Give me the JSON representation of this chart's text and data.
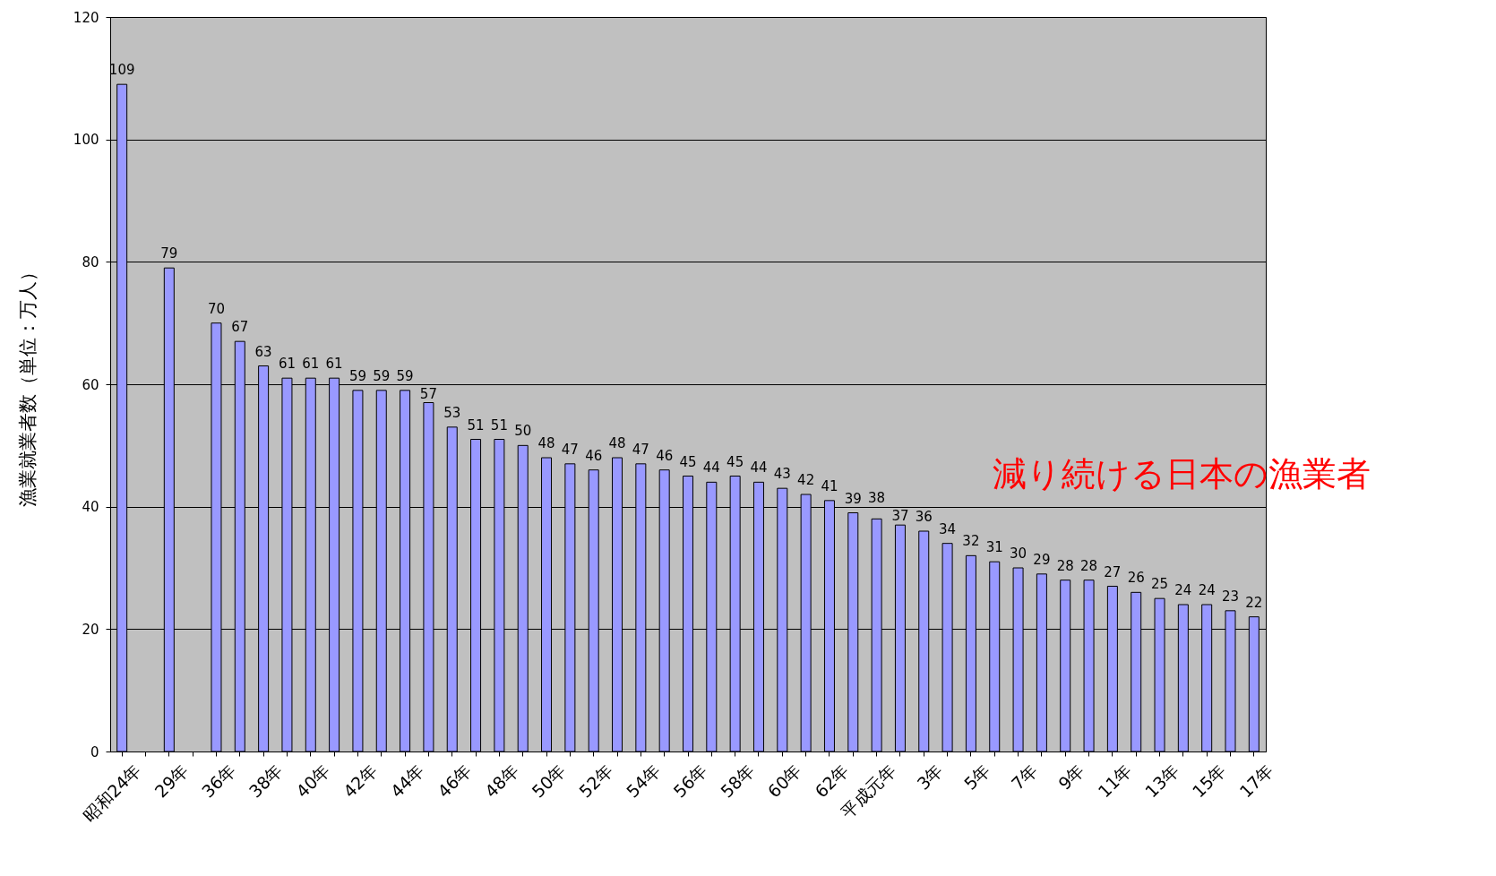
{
  "chart_data": {
    "type": "bar",
    "ylabel": "漁業就業者数（単位：万人）",
    "categories": [
      "昭和24年",
      null,
      "29年",
      null,
      "36年",
      null,
      "38年",
      null,
      "40年",
      null,
      "42年",
      null,
      "44年",
      null,
      "46年",
      null,
      "48年",
      null,
      "50年",
      null,
      "52年",
      null,
      "54年",
      null,
      "56年",
      null,
      "58年",
      null,
      "60年",
      null,
      "62年",
      null,
      "平成元年",
      null,
      "3年",
      null,
      "5年",
      null,
      "7年",
      null,
      "9年",
      null,
      "11年",
      null,
      "13年",
      null,
      "15年",
      null,
      "17年"
    ],
    "values": [
      109,
      null,
      79,
      null,
      70,
      67,
      63,
      61,
      61,
      61,
      59,
      59,
      59,
      57,
      53,
      51,
      51,
      50,
      48,
      47,
      46,
      48,
      47,
      46,
      45,
      44,
      45,
      44,
      43,
      42,
      41,
      39,
      38,
      37,
      36,
      34,
      32,
      31,
      30,
      29,
      28,
      28,
      27,
      26,
      25,
      24,
      24,
      23,
      22
    ],
    "color": "#9999ff",
    "ylim": [
      0,
      120
    ],
    "yticks": [
      0,
      20,
      40,
      60,
      80,
      100,
      120
    ],
    "grid": "y",
    "data_labels": true,
    "annotations": [
      "減り続ける日本の漁業者"
    ]
  }
}
